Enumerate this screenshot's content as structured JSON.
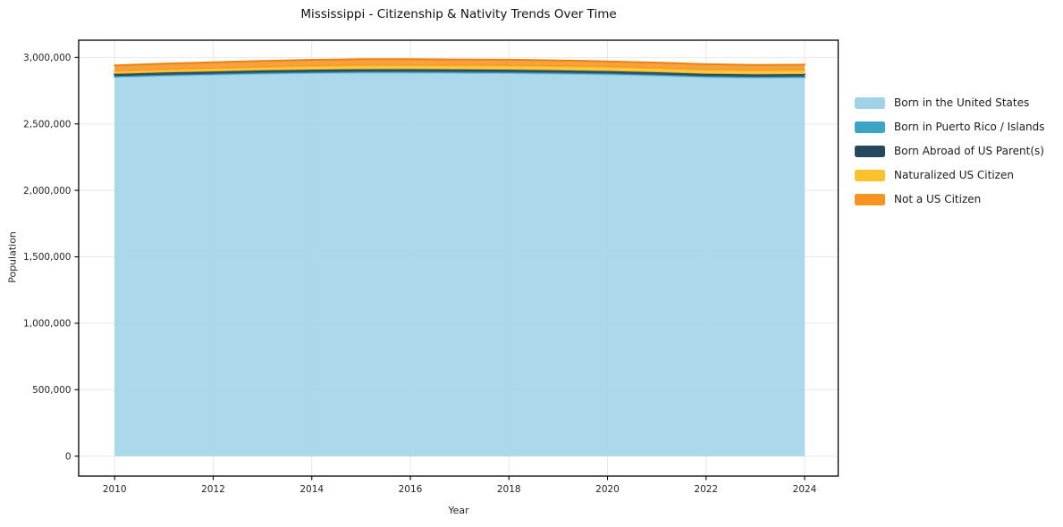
{
  "chart_data": {
    "type": "area",
    "stacked": true,
    "title": "Mississippi - Citizenship & Nativity Trends Over Time",
    "xlabel": "Year",
    "ylabel": "Population",
    "x": [
      2010,
      2011,
      2012,
      2013,
      2014,
      2015,
      2016,
      2017,
      2018,
      2019,
      2020,
      2021,
      2022,
      2023,
      2024
    ],
    "series": [
      {
        "name": "Born in the United States",
        "color": "#a1d3e8",
        "edge_color": "#8cc3dc",
        "values": [
          2852000,
          2862000,
          2870000,
          2877000,
          2882000,
          2885000,
          2885000,
          2883000,
          2881000,
          2877000,
          2872000,
          2863000,
          2852000,
          2847000,
          2849000
        ]
      },
      {
        "name": "Born in Puerto Rico / Islands",
        "color": "#3aa5c4",
        "edge_color": "#2f96b4",
        "values": [
          7000,
          7200,
          7400,
          7600,
          7800,
          8000,
          8100,
          8200,
          8200,
          8100,
          8000,
          7900,
          7800,
          7800,
          7900
        ]
      },
      {
        "name": "Born Abroad of US Parent(s)",
        "color": "#26475d",
        "edge_color": "#1e3a4d",
        "values": [
          16000,
          16500,
          17000,
          17500,
          18000,
          18200,
          18300,
          18200,
          18000,
          17800,
          17500,
          17200,
          17000,
          16900,
          16800
        ]
      },
      {
        "name": "Naturalized US Citizen",
        "color": "#fcc22e",
        "edge_color": "#f5b71e",
        "values": [
          22000,
          23000,
          24000,
          25500,
          27000,
          28000,
          29000,
          30000,
          31000,
          31500,
          31500,
          31000,
          30500,
          30800,
          31000
        ]
      },
      {
        "name": "Not a US Citizen",
        "color": "#f69321",
        "edge_color": "#e88312",
        "values": [
          43000,
          44300,
          45600,
          46400,
          47200,
          47800,
          46600,
          45600,
          44800,
          43600,
          42000,
          41900,
          41700,
          41500,
          41300
        ]
      }
    ],
    "x_ticks": [
      2010,
      2012,
      2014,
      2016,
      2018,
      2020,
      2022,
      2024
    ],
    "y_ticks": [
      0,
      500000,
      1000000,
      1500000,
      2000000,
      2500000,
      3000000
    ],
    "y_tick_labels": [
      "0",
      "500,000",
      "1,000,000",
      "1,500,000",
      "2,000,000",
      "2,500,000",
      "3,000,000"
    ],
    "xlim": [
      2009.27,
      2024.68
    ],
    "ylim": [
      -150000,
      3130000
    ],
    "grid": true,
    "gridline_color": "#e8e8e8",
    "spine_color": "#000000",
    "fill_opacity": 0.88,
    "legend_position": "right-outside",
    "background": "#ffffff"
  }
}
